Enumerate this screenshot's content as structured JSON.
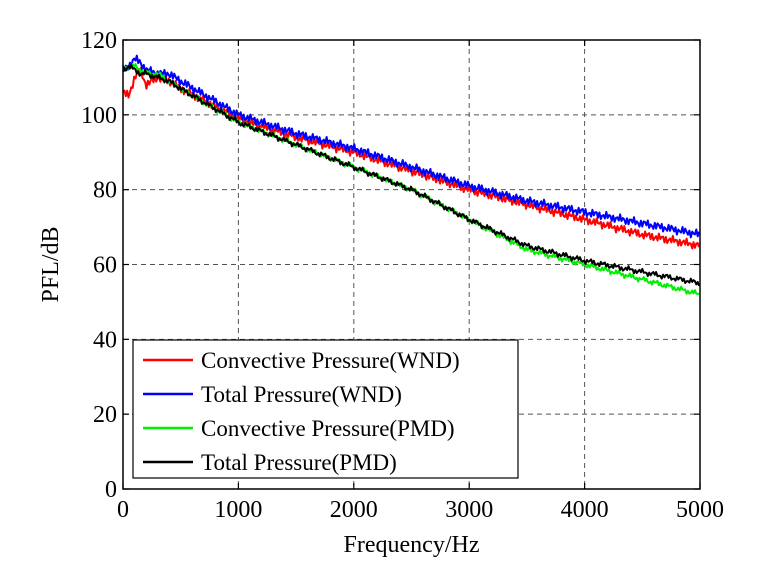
{
  "chart_data": {
    "type": "line",
    "title": "",
    "xlabel": "Frequency/Hz",
    "ylabel": "PFL/dB",
    "xlim": [
      0,
      5000
    ],
    "ylim": [
      0,
      120
    ],
    "xticks": [
      0,
      1000,
      2000,
      3000,
      4000,
      5000
    ],
    "yticks": [
      0,
      20,
      40,
      60,
      80,
      100,
      120
    ],
    "xtick_labels": [
      "0",
      "1000",
      "2000",
      "3000",
      "4000",
      "5000"
    ],
    "ytick_labels": [
      "0",
      "20",
      "40",
      "60",
      "80",
      "100",
      "120"
    ],
    "grid": true,
    "legend_position": "bottom-left",
    "series": [
      {
        "name": "Convective Pressure(WND)",
        "color": "#ff0000",
        "x": [
          0,
          50,
          100,
          150,
          200,
          300,
          400,
          500,
          1000,
          1500,
          2000,
          2500,
          3000,
          3500,
          4000,
          4500,
          5000
        ],
        "values": [
          106,
          105,
          110,
          112,
          108,
          110,
          109,
          107,
          99,
          94,
          90,
          85,
          80,
          76,
          72,
          68,
          65
        ]
      },
      {
        "name": "Total Pressure(WND)",
        "color": "#0000ff",
        "x": [
          0,
          50,
          100,
          150,
          200,
          300,
          400,
          500,
          1000,
          1500,
          2000,
          2500,
          3000,
          3500,
          4000,
          4500,
          5000
        ],
        "values": [
          112,
          113,
          115,
          114,
          112,
          111,
          111,
          109,
          100,
          95,
          91,
          86,
          81,
          77,
          74,
          71,
          68
        ]
      },
      {
        "name": "Convective Pressure(PMD)",
        "color": "#00ee00",
        "x": [
          0,
          50,
          100,
          150,
          200,
          300,
          400,
          500,
          1000,
          1500,
          2000,
          2500,
          3000,
          3500,
          4000,
          4500,
          5000
        ],
        "values": [
          112,
          113,
          113,
          112,
          111,
          111,
          109,
          107,
          98,
          92,
          86,
          80,
          72,
          64,
          60,
          56,
          52
        ]
      },
      {
        "name": "Total Pressure(PMD)",
        "color": "#000000",
        "x": [
          0,
          50,
          100,
          150,
          200,
          300,
          400,
          500,
          1000,
          1500,
          2000,
          2500,
          3000,
          3500,
          4000,
          4500,
          5000
        ],
        "values": [
          112,
          113,
          112,
          111,
          111,
          110,
          109,
          107,
          98,
          92,
          86,
          80,
          72,
          65,
          61,
          58,
          55
        ]
      }
    ]
  }
}
